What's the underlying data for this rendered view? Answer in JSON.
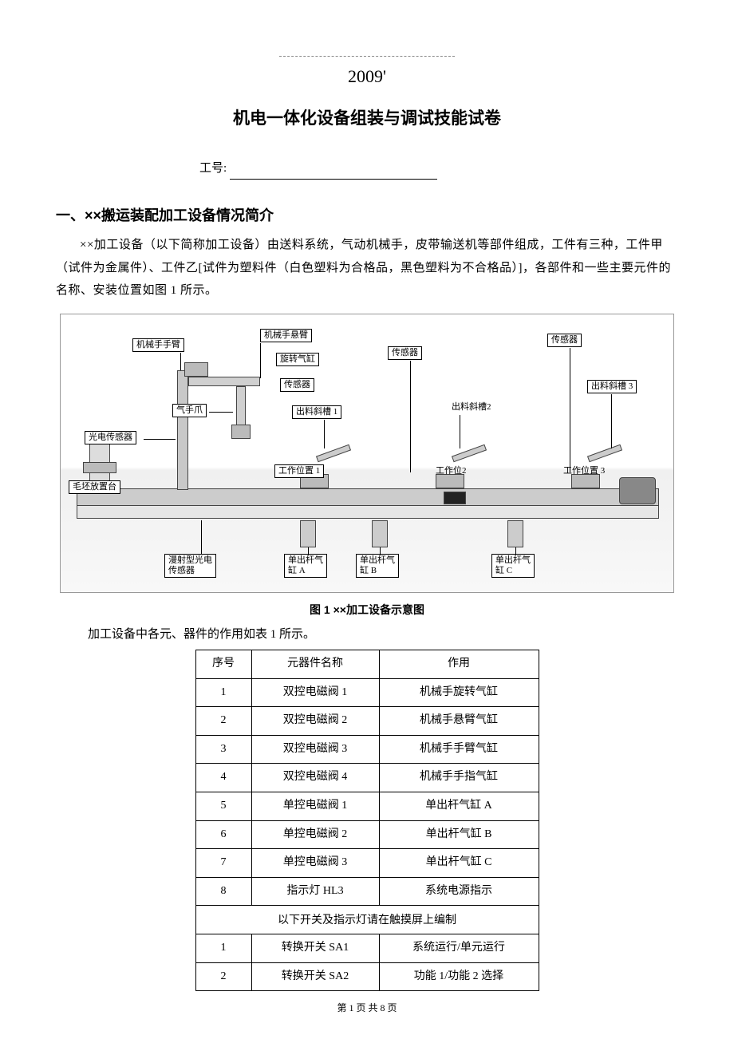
{
  "header": {
    "year": "2009'",
    "title": "机电一体化设备组装与调试技能试卷",
    "worker_label": "工号:"
  },
  "section1": {
    "heading": "一、××搬运装配加工设备情况简介",
    "para": "××加工设备（以下简称加工设备）由送料系统，气动机械手，皮带输送机等部件组成，工件有三种，工件甲（试件为金属件）、工件乙[试件为塑料件（白色塑料为合格品，黑色塑料为不合格品）]，各部件和一些主要元件的名称、安装位置如图 1 所示。"
  },
  "diagram": {
    "caption": "图 1   ××加工设备示意图",
    "labels": {
      "arm": "机械手手臂",
      "boom": "机械手悬臂",
      "rot_cyl": "旋转气缸",
      "sensor_a": "传感器",
      "sensor_b": "传感器",
      "sensor_c": "传感器",
      "gripper": "气手爪",
      "chute1": "出料斜槽 1",
      "chute2": "出料斜槽2",
      "chute3": "出料斜槽 3",
      "photo": "光电传感器",
      "blank_stage": "毛坯放置台",
      "diffuse": "漫射型光电\n传感器",
      "pos1": "工作位置 1",
      "pos2": "工作位2",
      "pos3": "工作位置 3",
      "cylA": "单出杆气\n缸 A",
      "cylB": "单出杆气\n缸 B",
      "cylC": "单出杆气\n缸 C"
    }
  },
  "table_intro": "加工设备中各元、器件的作用如表 1 所示。",
  "table": {
    "headers": {
      "idx": "序号",
      "name": "元器件名称",
      "func": "作用"
    },
    "rows": [
      {
        "idx": "1",
        "name": "双控电磁阀 1",
        "func": "机械手旋转气缸"
      },
      {
        "idx": "2",
        "name": "双控电磁阀 2",
        "func": "机械手悬臂气缸"
      },
      {
        "idx": "3",
        "name": "双控电磁阀 3",
        "func": "机械手手臂气缸"
      },
      {
        "idx": "4",
        "name": "双控电磁阀 4",
        "func": "机械手手指气缸"
      },
      {
        "idx": "5",
        "name": "单控电磁阀 1",
        "func": "单出杆气缸 A"
      },
      {
        "idx": "6",
        "name": "单控电磁阀 2",
        "func": "单出杆气缸 B"
      },
      {
        "idx": "7",
        "name": "单控电磁阀 3",
        "func": "单出杆气缸 C"
      },
      {
        "idx": "8",
        "name": "指示灯 HL3",
        "func": "系统电源指示"
      }
    ],
    "section_note": "以下开关及指示灯请在触摸屏上编制",
    "rows2": [
      {
        "idx": "1",
        "name": "转换开关 SA1",
        "func": "系统运行/单元运行"
      },
      {
        "idx": "2",
        "name": "转换开关 SA2",
        "func": "功能 1/功能 2  选择"
      }
    ]
  },
  "footer": {
    "page_line": "第 1 页 共 8 页"
  }
}
